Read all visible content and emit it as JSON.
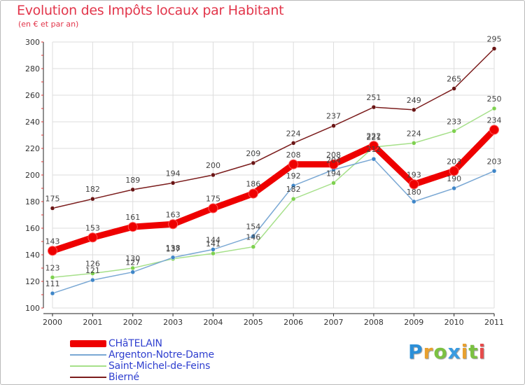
{
  "title": "Evolution des Impôts locaux par Habitant",
  "subtitle": "(en € et par an)",
  "logo": "Proxiti",
  "chart_data": {
    "type": "line",
    "categories": [
      "2000",
      "2001",
      "2002",
      "2003",
      "2004",
      "2005",
      "2006",
      "2007",
      "2008",
      "2009",
      "2010",
      "2011"
    ],
    "ylim": [
      100,
      300
    ],
    "yticks": [
      100,
      120,
      140,
      160,
      180,
      200,
      220,
      240,
      260,
      280,
      300
    ],
    "grid": true,
    "legend_position": "bottom-left",
    "series": [
      {
        "name": "Bierné",
        "color": "#7b1c1c",
        "marker": "#6a1515",
        "width": "thin",
        "values": [
          175,
          182,
          189,
          194,
          200,
          209,
          224,
          237,
          251,
          249,
          265,
          295
        ],
        "labels": [
          "175",
          "182",
          "189",
          "194",
          "200",
          "209",
          "224",
          "237",
          "251",
          "249",
          "265",
          "295"
        ]
      },
      {
        "name": "Saint-Michel-de-Feins",
        "color": "#a6e08a",
        "marker": "#7ed14f",
        "width": "thin",
        "values": [
          123,
          126,
          130,
          137,
          141,
          146,
          182,
          194,
          221,
          224,
          233,
          250
        ],
        "labels": [
          "123",
          "126",
          "130",
          "137",
          "141",
          "146",
          "182",
          "194",
          "221",
          "224",
          "233",
          "250"
        ]
      },
      {
        "name": "Argenton-Notre-Dame",
        "color": "#7aa8d4",
        "marker": "#3f86c8",
        "width": "thin",
        "values": [
          111,
          121,
          127,
          138,
          144,
          154,
          192,
          204,
          212,
          180,
          190,
          203
        ],
        "labels": [
          "111",
          "121",
          "127",
          "138",
          "144",
          "154",
          "192",
          "204",
          "212",
          "180",
          "190",
          "203"
        ]
      },
      {
        "name": "CHâTELAIN",
        "color": "#ee0000",
        "marker": "#ee0000",
        "width": "thick",
        "values": [
          143,
          153,
          161,
          163,
          175,
          186,
          208,
          208,
          222,
          193,
          203,
          234
        ],
        "labels": [
          "143",
          "153",
          "161",
          "163",
          "175",
          "186",
          "208",
          "208",
          "222",
          "193",
          "203",
          "234"
        ]
      }
    ]
  },
  "legend": [
    {
      "label": "CHâTELAIN",
      "color": "#ee0000",
      "width": "thick"
    },
    {
      "label": "Argenton-Notre-Dame",
      "color": "#7aa8d4",
      "width": "thin"
    },
    {
      "label": "Saint-Michel-de-Feins",
      "color": "#a6e08a",
      "width": "thin"
    },
    {
      "label": "Bierné",
      "color": "#7b1c1c",
      "width": "thin"
    }
  ]
}
